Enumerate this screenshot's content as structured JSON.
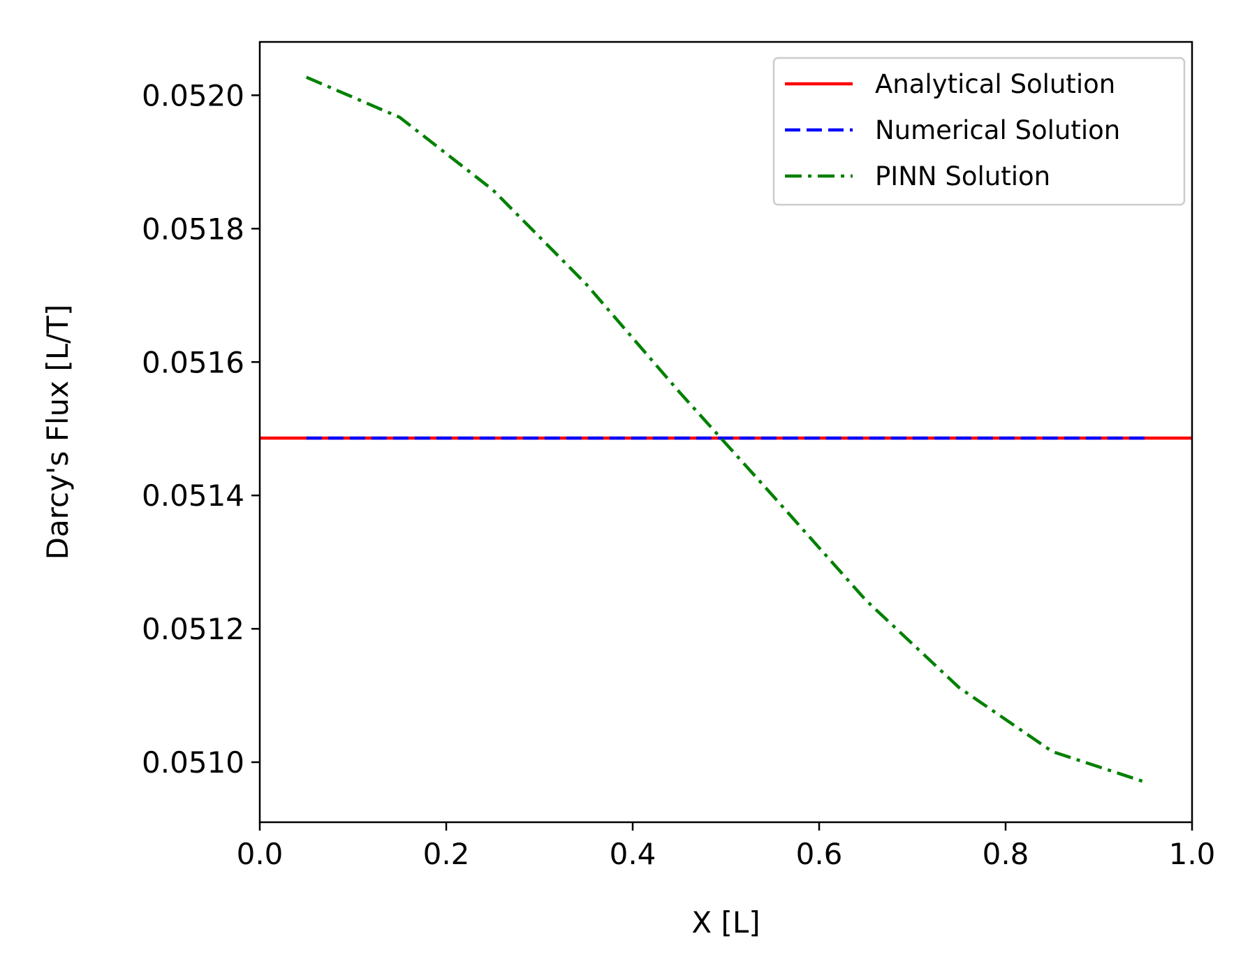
{
  "chart_data": {
    "type": "line",
    "title": "",
    "xlabel": "X [L]",
    "ylabel": "Darcy's Flux [L/T]",
    "xlim": [
      0.0,
      1.0
    ],
    "ylim": [
      0.05091,
      0.05208
    ],
    "xticks": [
      0.0,
      0.2,
      0.4,
      0.6,
      0.8,
      1.0
    ],
    "xtick_labels": [
      "0.0",
      "0.2",
      "0.4",
      "0.6",
      "0.8",
      "1.0"
    ],
    "yticks": [
      0.051,
      0.0512,
      0.0514,
      0.0516,
      0.0518,
      0.052
    ],
    "ytick_labels": [
      "0.0510",
      "0.0512",
      "0.0514",
      "0.0516",
      "0.0518",
      "0.0520"
    ],
    "grid": false,
    "legend_position": "top-right",
    "series": [
      {
        "name": "Analytical Solution",
        "color": "#ff0000",
        "style": "solid",
        "x": [
          0.0,
          1.0
        ],
        "y": [
          0.051486,
          0.051486
        ]
      },
      {
        "name": "Numerical Solution",
        "color": "#0000ff",
        "style": "dashed",
        "x": [
          0.05,
          0.95
        ],
        "y": [
          0.051486,
          0.051486
        ]
      },
      {
        "name": "PINN Solution",
        "color": "#008000",
        "style": "dashdot",
        "x": [
          0.05,
          0.15,
          0.25,
          0.35,
          0.45,
          0.55,
          0.65,
          0.75,
          0.85,
          0.95
        ],
        "y": [
          0.052027,
          0.051967,
          0.051858,
          0.051717,
          0.051555,
          0.0514,
          0.051243,
          0.051112,
          0.051016,
          0.05097
        ]
      }
    ]
  }
}
